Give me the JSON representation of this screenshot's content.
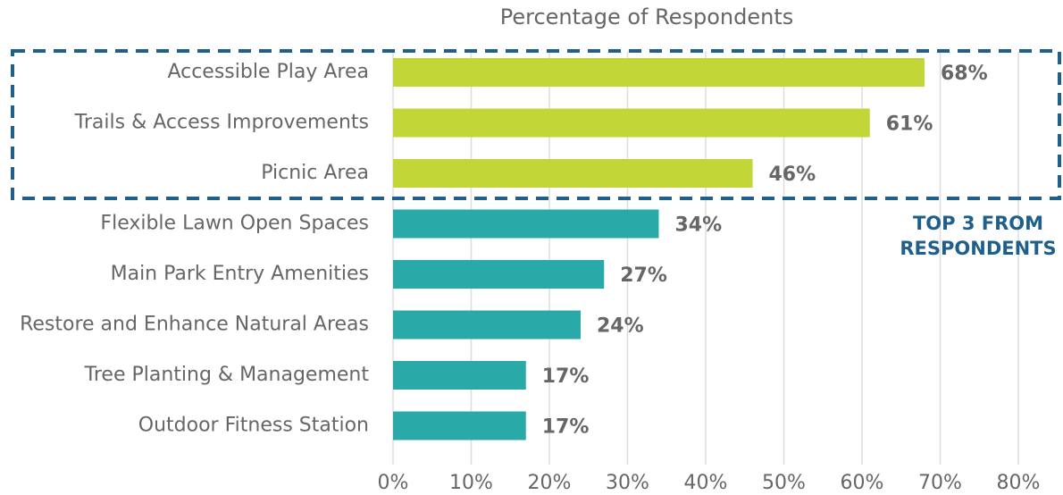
{
  "chart_data": {
    "type": "hbar",
    "title": "Percentage of Respondents",
    "categories": [
      "Accessible Play Area",
      "Trails & Access Improvements",
      "Picnic Area",
      "Flexible Lawn Open Spaces",
      "Main Park Entry Amenities",
      "Restore and Enhance Natural Areas",
      "Tree Planting & Management",
      "Outdoor Fitness Station"
    ],
    "values": [
      68,
      61,
      46,
      34,
      27,
      24,
      17,
      17
    ],
    "value_labels": [
      "68%",
      "61%",
      "46%",
      "34%",
      "27%",
      "24%",
      "17%",
      "17%"
    ],
    "colors": [
      "#c2d638",
      "#c2d638",
      "#c2d638",
      "#2aa9a9",
      "#2aa9a9",
      "#2aa9a9",
      "#2aa9a9",
      "#2aa9a9"
    ],
    "xlim": [
      0,
      80
    ],
    "xticks": [
      {
        "value": 0,
        "label": "0%"
      },
      {
        "value": 10,
        "label": "10%"
      },
      {
        "value": 20,
        "label": "20%"
      },
      {
        "value": 30,
        "label": "30%"
      },
      {
        "value": 40,
        "label": "40%"
      },
      {
        "value": 50,
        "label": "50%"
      },
      {
        "value": 60,
        "label": "60%"
      },
      {
        "value": 70,
        "label": "70%"
      },
      {
        "value": 80,
        "label": "80%"
      }
    ],
    "grid": true,
    "annotation": [
      "TOP 3 FROM",
      "RESPONDENTS"
    ],
    "annotation_color": "#1f5f8b"
  }
}
